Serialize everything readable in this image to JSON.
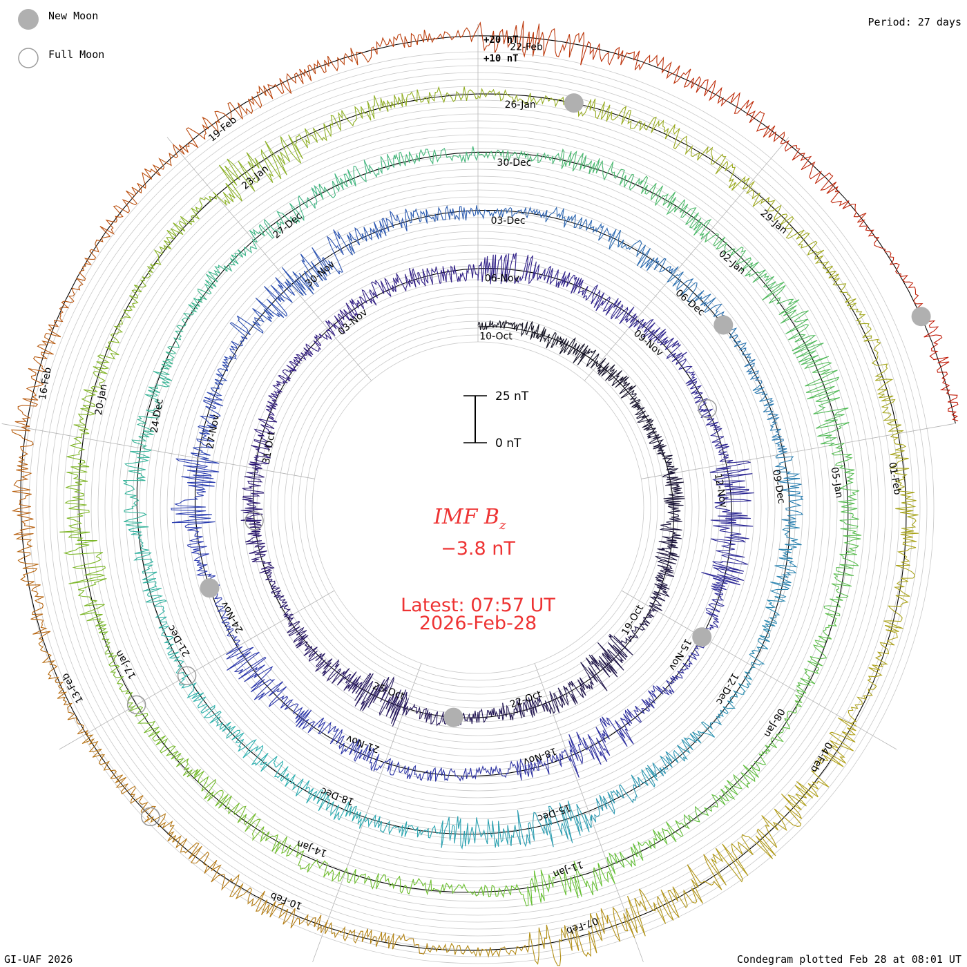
{
  "legend": {
    "new_moon": "New Moon",
    "full_moon": "Full Moon",
    "new_moon_color": "#b0b0b0",
    "full_moon_color": "#9a9a9a"
  },
  "header": {
    "period": "Period: 27 days"
  },
  "footer": {
    "credit": "GI-UAF 2026",
    "plotted": "Condegram plotted Feb 28 at 08:01 UT"
  },
  "scale": {
    "ring_top_label": "+20 nT",
    "ring_mid_label": "+10 nT",
    "bar_top_label": "25 nT",
    "bar_bottom_label": "0 nT"
  },
  "center": {
    "quantity_main": "IMF B",
    "quantity_sub": "z",
    "value": "−3.8 nT",
    "latest": "Latest: 07:57 UT",
    "date": "2026-Feb-28",
    "text_color": "#ee3333"
  },
  "chart_data": {
    "type": "condegram-spiral",
    "title": "IMF Bz",
    "period_days": 27,
    "units": "nT",
    "latest_value": -3.8,
    "turn_colors": [
      "#10101a",
      "#301a80",
      "#2a3ab0",
      "#2ab0b0",
      "#68c030",
      "#b0a018",
      "#c01808"
    ],
    "date_labels": [
      {
        "text": "10-Oct",
        "day_offset": 0
      },
      {
        "text": "19-Oct",
        "day_offset": 9
      },
      {
        "text": "22-Oct",
        "day_offset": 12
      },
      {
        "text": "25-Oct",
        "day_offset": 15
      },
      {
        "text": "31-Oct",
        "day_offset": 21
      },
      {
        "text": "03-Nov",
        "day_offset": 24
      },
      {
        "text": "06-Nov",
        "day_offset": 27
      },
      {
        "text": "09-Nov",
        "day_offset": 30
      },
      {
        "text": "12-Nov",
        "day_offset": 33
      },
      {
        "text": "15-Nov",
        "day_offset": 36
      },
      {
        "text": "18-Nov",
        "day_offset": 39
      },
      {
        "text": "21-Nov",
        "day_offset": 42
      },
      {
        "text": "24-Nov",
        "day_offset": 45
      },
      {
        "text": "27-Nov",
        "day_offset": 48
      },
      {
        "text": "30-Nov",
        "day_offset": 51
      },
      {
        "text": "03-Dec",
        "day_offset": 54
      },
      {
        "text": "06-Dec",
        "day_offset": 57
      },
      {
        "text": "09-Dec",
        "day_offset": 60
      },
      {
        "text": "12-Dec",
        "day_offset": 63
      },
      {
        "text": "15-Dec",
        "day_offset": 66
      },
      {
        "text": "18-Dec",
        "day_offset": 69
      },
      {
        "text": "21-Dec",
        "day_offset": 72
      },
      {
        "text": "24-Dec",
        "day_offset": 75
      },
      {
        "text": "27-Dec",
        "day_offset": 78
      },
      {
        "text": "30-Dec",
        "day_offset": 81
      },
      {
        "text": "02-Jan",
        "day_offset": 84
      },
      {
        "text": "05-Jan",
        "day_offset": 87
      },
      {
        "text": "08-Jan",
        "day_offset": 90
      },
      {
        "text": "11-Jan",
        "day_offset": 93
      },
      {
        "text": "14-Jan",
        "day_offset": 96
      },
      {
        "text": "17-Jan",
        "day_offset": 99
      },
      {
        "text": "20-Jan",
        "day_offset": 102
      },
      {
        "text": "23-Jan",
        "day_offset": 105
      },
      {
        "text": "26-Jan",
        "day_offset": 108
      },
      {
        "text": "29-Jan",
        "day_offset": 111
      },
      {
        "text": "01-Feb",
        "day_offset": 114
      },
      {
        "text": "04-Feb",
        "day_offset": 117
      },
      {
        "text": "07-Feb",
        "day_offset": 120
      },
      {
        "text": "10-Feb",
        "day_offset": 123
      },
      {
        "text": "13-Feb",
        "day_offset": 126
      },
      {
        "text": "16-Feb",
        "day_offset": 129
      },
      {
        "text": "19-Feb",
        "day_offset": 132
      },
      {
        "text": "22-Feb",
        "day_offset": 135
      }
    ],
    "new_moon_days": [
      14,
      36,
      46,
      58,
      109,
      140
    ],
    "full_moon_days": [
      20,
      32,
      72,
      99,
      125
    ],
    "series_total_days": 141
  }
}
